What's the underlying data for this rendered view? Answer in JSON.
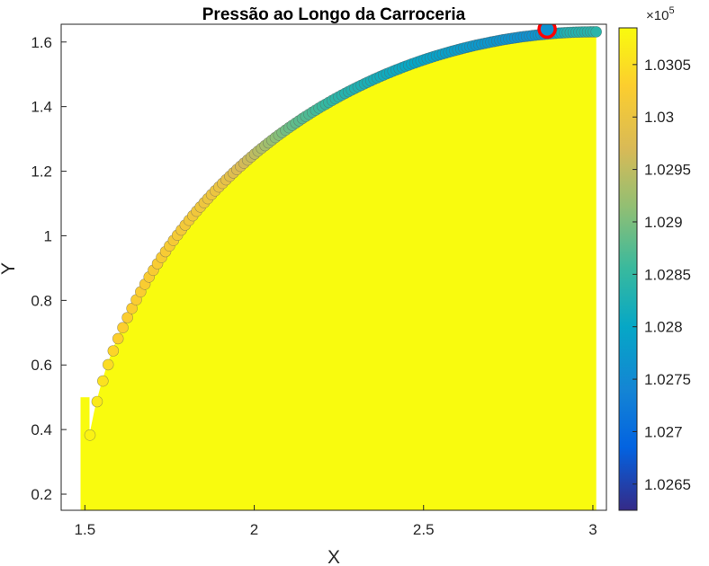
{
  "chart_data": {
    "type": "scatter",
    "title": "Pressão ao Longo da Carroceria",
    "xlabel": "X",
    "ylabel": "Y",
    "xlim": [
      1.43,
      3.04
    ],
    "ylim": [
      0.15,
      1.655
    ],
    "xticks": [
      "1.5",
      "2",
      "2.5",
      "3"
    ],
    "xtick_values": [
      1.5,
      2,
      2.5,
      3
    ],
    "yticks": [
      "0.2",
      "0.4",
      "0.6",
      "0.8",
      "1",
      "1.2",
      "1.4",
      "1.6"
    ],
    "ytick_values": [
      0.2,
      0.4,
      0.6,
      0.8,
      1.0,
      1.2,
      1.4,
      1.6
    ],
    "colormap": "parula",
    "colorbar": {
      "exponent_base": "×10",
      "exponent_power": "5",
      "limits": [
        1.02625,
        1.03085
      ],
      "ticks": [
        "1.0265",
        "1.027",
        "1.0275",
        "1.028",
        "1.0285",
        "1.029",
        "1.0295",
        "1.03",
        "1.0305"
      ],
      "tick_values": [
        1.0265,
        1.027,
        1.0275,
        1.028,
        1.0285,
        1.029,
        1.0295,
        1.03,
        1.0305
      ]
    },
    "body_fill_color": "#f9fb0e",
    "body_region": {
      "x_start": 1.495,
      "x_end": 3.01,
      "y_min": 0.15,
      "y_top": 1.64,
      "shape": "quarter-ellipse"
    },
    "surface_pressure_by_x": [
      {
        "x": 1.495,
        "p": 1.03085
      },
      {
        "x": 1.6,
        "p": 1.0303
      },
      {
        "x": 1.75,
        "p": 1.0302
      },
      {
        "x": 1.9,
        "p": 1.03
      },
      {
        "x": 2.0,
        "p": 1.0295
      },
      {
        "x": 2.1,
        "p": 1.0289
      },
      {
        "x": 2.25,
        "p": 1.0284
      },
      {
        "x": 2.4,
        "p": 1.0281
      },
      {
        "x": 2.55,
        "p": 1.0279
      },
      {
        "x": 2.7,
        "p": 1.0277
      },
      {
        "x": 2.8,
        "p": 1.0276
      },
      {
        "x": 2.87,
        "p": 1.0277
      },
      {
        "x": 2.92,
        "p": 1.0283
      },
      {
        "x": 3.01,
        "p": 1.0284
      }
    ],
    "highlight_point": {
      "x": 2.865,
      "y": 1.64,
      "color": "#ff0000"
    }
  }
}
